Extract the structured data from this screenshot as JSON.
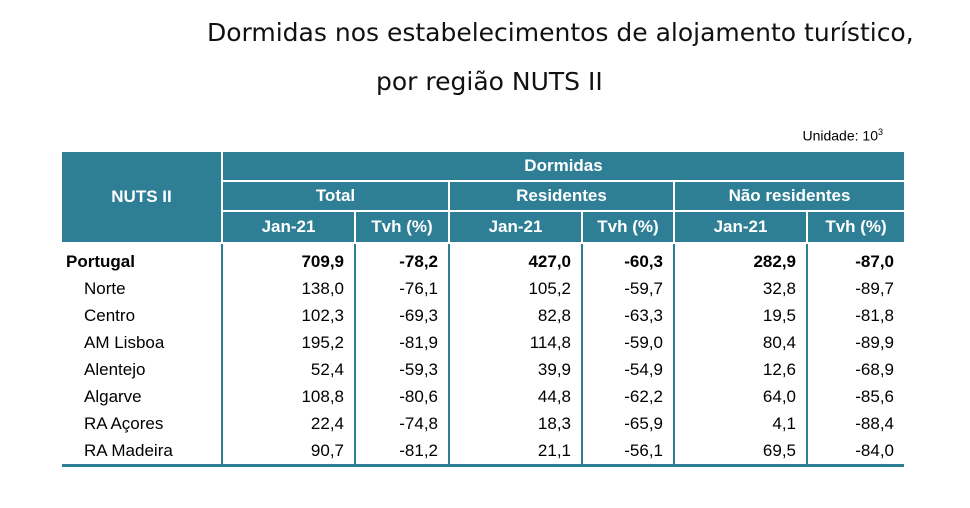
{
  "title_line1": "Dormidas nos estabelecimentos de alojamento turístico,",
  "title_line2": "por região NUTS II",
  "unit_label": "Unidade:",
  "unit_base": "10",
  "unit_exp": "3",
  "header": {
    "nuts": "NUTS II",
    "dormidas": "Dormidas",
    "groups": [
      "Total",
      "Residentes",
      "Não residentes"
    ],
    "sub": [
      "Jan-21",
      "Tvh (%)",
      "Jan-21",
      "Tvh (%)",
      "Jan-21",
      "Tvh (%)"
    ]
  },
  "rows": [
    {
      "name": "Portugal",
      "v": [
        "709,9",
        "-78,2",
        "427,0",
        "-60,3",
        "282,9",
        "-87,0"
      ]
    },
    {
      "name": "Norte",
      "v": [
        "138,0",
        "-76,1",
        "105,2",
        "-59,7",
        "32,8",
        "-89,7"
      ]
    },
    {
      "name": "Centro",
      "v": [
        "102,3",
        "-69,3",
        "82,8",
        "-63,3",
        "19,5",
        "-81,8"
      ]
    },
    {
      "name": "AM Lisboa",
      "v": [
        "195,2",
        "-81,9",
        "114,8",
        "-59,0",
        "80,4",
        "-89,9"
      ]
    },
    {
      "name": "Alentejo",
      "v": [
        "52,4",
        "-59,3",
        "39,9",
        "-54,9",
        "12,6",
        "-68,9"
      ]
    },
    {
      "name": "Algarve",
      "v": [
        "108,8",
        "-80,6",
        "44,8",
        "-62,2",
        "64,0",
        "-85,6"
      ]
    },
    {
      "name": "RA Açores",
      "v": [
        "22,4",
        "-74,8",
        "18,3",
        "-65,9",
        "4,1",
        "-88,4"
      ]
    },
    {
      "name": "RA Madeira",
      "v": [
        "90,7",
        "-81,2",
        "21,1",
        "-56,1",
        "69,5",
        "-84,0"
      ]
    }
  ],
  "colors": {
    "header_bg": "#2e7f96",
    "header_text": "#ffffff"
  }
}
